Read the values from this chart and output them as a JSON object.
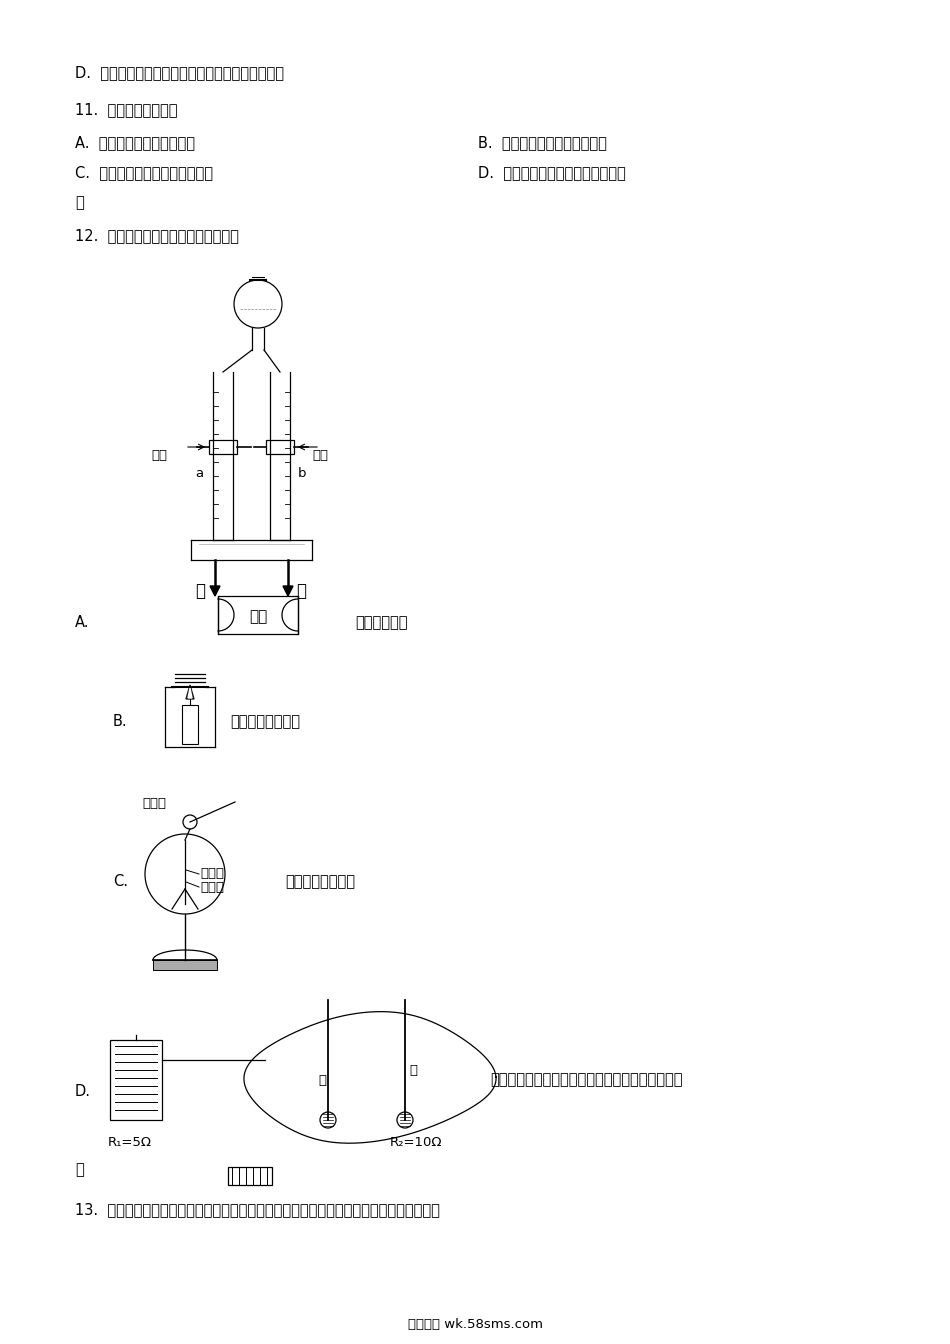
{
  "bg_color": "#ffffff",
  "line_color": "#000000",
  "page_width": 9.5,
  "page_height": 13.44,
  "dpi": 100,
  "texts": {
    "d_option": "D.  两名同学玩跷跷板时，质量小的同学离支点近些",
    "q11": "11.  下列分类正确的是",
    "q11_A": "A.  非晶体：冰、松香、沥青",
    "q11_B": "B.  绝缘体：橡胶、玻璃、石墨",
    "q11_C": "C.  稀有气体：氦气、氖气、氩气",
    "q11_D1": "D.  纯净物：液态氧、金刚石、矿泉",
    "q11_D2": "水",
    "q12": "12.  利用图所示器材不能完成的实验是",
    "diagA_label": "A.",
    "diagA_desc": "探究水的组成",
    "diagA_left": "活塞",
    "diagA_right": "活塞",
    "diagA_a": "a",
    "diagA_b": "b",
    "diagA_minus": "－",
    "diagA_plus": "＋",
    "diagA_power": "电源",
    "diagB_label": "B.",
    "diagB_desc": "验证燃烧需要氧气",
    "diagC_label": "C.",
    "diagC_desc": "检验物体是否带电",
    "diagC_ball": "金属球",
    "diagC_rod": "金属杆",
    "diagC_foil": "金属箔",
    "diagD_label": "D.",
    "diagD_desc1": "探究电流通过导体产生热量的多少与电流大小的关",
    "diagD_desc2": "系",
    "diagD_R1": "R₁=5Ω",
    "diagD_R2": "R₂=10Ω",
    "diagD_jia": "甲",
    "diagD_yi": "乙",
    "q13": "13.  按图所示进行实验。当观察到热水大面积变成红色时，冷水中只有品红周围变成红色。",
    "footer": "五八文库 wk.58sms.com"
  }
}
